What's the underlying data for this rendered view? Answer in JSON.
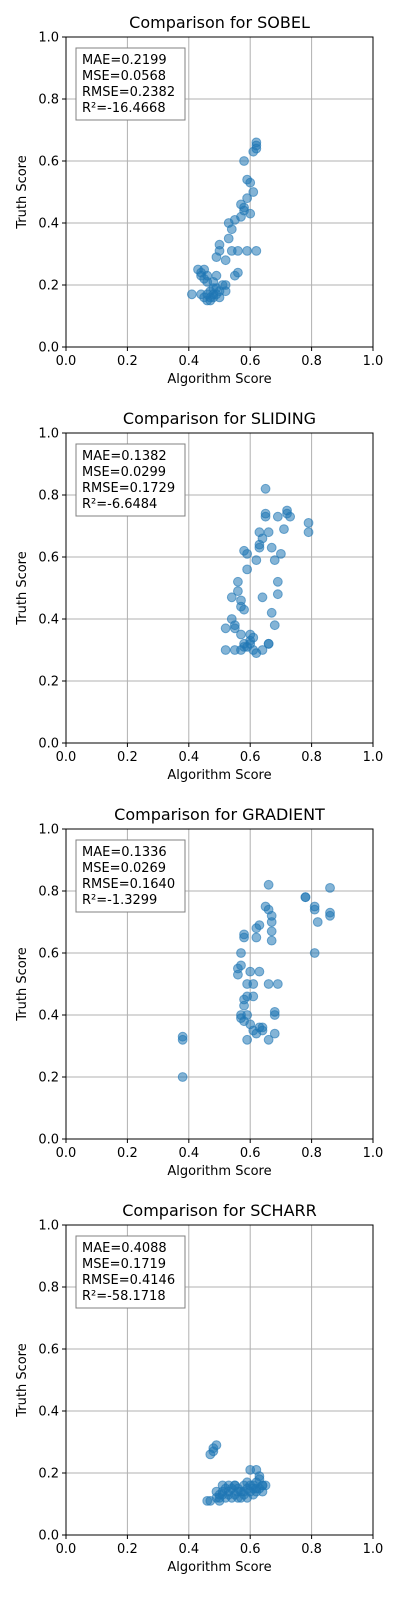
{
  "chart_data": [
    {
      "type": "scatter",
      "title": "Comparison for SOBEL",
      "xlabel": "Algorithm Score",
      "ylabel": "Truth Score",
      "xlim": [
        0,
        1
      ],
      "ylim": [
        0,
        1
      ],
      "xticks": [
        "0.0",
        "0.2",
        "0.4",
        "0.6",
        "0.8",
        "1.0"
      ],
      "yticks": [
        "0.0",
        "0.2",
        "0.4",
        "0.6",
        "0.8",
        "1.0"
      ],
      "grid": true,
      "point_color": "#1f77b4",
      "stats": [
        "MAE=0.2199",
        "MSE=0.0568",
        "RMSE=0.2382",
        "R²=-16.4668"
      ],
      "points": [
        [
          0.41,
          0.17
        ],
        [
          0.43,
          0.25
        ],
        [
          0.44,
          0.24
        ],
        [
          0.44,
          0.17
        ],
        [
          0.45,
          0.16
        ],
        [
          0.45,
          0.25
        ],
        [
          0.46,
          0.23
        ],
        [
          0.46,
          0.21
        ],
        [
          0.47,
          0.18
        ],
        [
          0.47,
          0.15
        ],
        [
          0.48,
          0.16
        ],
        [
          0.48,
          0.21
        ],
        [
          0.48,
          0.17
        ],
        [
          0.49,
          0.17
        ],
        [
          0.49,
          0.19
        ],
        [
          0.49,
          0.29
        ],
        [
          0.49,
          0.23
        ],
        [
          0.5,
          0.31
        ],
        [
          0.5,
          0.33
        ],
        [
          0.5,
          0.18
        ],
        [
          0.51,
          0.2
        ],
        [
          0.52,
          0.28
        ],
        [
          0.52,
          0.2
        ],
        [
          0.52,
          0.18
        ],
        [
          0.53,
          0.35
        ],
        [
          0.53,
          0.4
        ],
        [
          0.54,
          0.31
        ],
        [
          0.54,
          0.38
        ],
        [
          0.55,
          0.23
        ],
        [
          0.55,
          0.41
        ],
        [
          0.56,
          0.24
        ],
        [
          0.56,
          0.31
        ],
        [
          0.57,
          0.42
        ],
        [
          0.57,
          0.46
        ],
        [
          0.58,
          0.45
        ],
        [
          0.58,
          0.6
        ],
        [
          0.58,
          0.44
        ],
        [
          0.59,
          0.54
        ],
        [
          0.59,
          0.48
        ],
        [
          0.59,
          0.31
        ],
        [
          0.6,
          0.43
        ],
        [
          0.6,
          0.53
        ],
        [
          0.61,
          0.5
        ],
        [
          0.61,
          0.63
        ],
        [
          0.62,
          0.65
        ],
        [
          0.62,
          0.66
        ],
        [
          0.62,
          0.64
        ],
        [
          0.62,
          0.31
        ],
        [
          0.44,
          0.23
        ],
        [
          0.46,
          0.15
        ],
        [
          0.47,
          0.16
        ],
        [
          0.45,
          0.22
        ],
        [
          0.48,
          0.19
        ],
        [
          0.46,
          0.17
        ],
        [
          0.5,
          0.16
        ]
      ]
    },
    {
      "type": "scatter",
      "title": "Comparison for SLIDING",
      "xlabel": "Algorithm Score",
      "ylabel": "Truth Score",
      "xlim": [
        0,
        1
      ],
      "ylim": [
        0,
        1
      ],
      "xticks": [
        "0.0",
        "0.2",
        "0.4",
        "0.6",
        "0.8",
        "1.0"
      ],
      "yticks": [
        "0.0",
        "0.2",
        "0.4",
        "0.6",
        "0.8",
        "1.0"
      ],
      "grid": true,
      "point_color": "#1f77b4",
      "stats": [
        "MAE=0.1382",
        "MSE=0.0299",
        "RMSE=0.1729",
        "R²=-6.6484"
      ],
      "points": [
        [
          0.52,
          0.3
        ],
        [
          0.52,
          0.37
        ],
        [
          0.54,
          0.4
        ],
        [
          0.54,
          0.47
        ],
        [
          0.55,
          0.38
        ],
        [
          0.55,
          0.3
        ],
        [
          0.56,
          0.52
        ],
        [
          0.56,
          0.49
        ],
        [
          0.57,
          0.44
        ],
        [
          0.57,
          0.46
        ],
        [
          0.57,
          0.35
        ],
        [
          0.58,
          0.32
        ],
        [
          0.58,
          0.43
        ],
        [
          0.58,
          0.31
        ],
        [
          0.58,
          0.62
        ],
        [
          0.59,
          0.56
        ],
        [
          0.59,
          0.31
        ],
        [
          0.6,
          0.35
        ],
        [
          0.6,
          0.33
        ],
        [
          0.61,
          0.3
        ],
        [
          0.61,
          0.34
        ],
        [
          0.62,
          0.59
        ],
        [
          0.62,
          0.29
        ],
        [
          0.63,
          0.64
        ],
        [
          0.63,
          0.68
        ],
        [
          0.64,
          0.47
        ],
        [
          0.64,
          0.66
        ],
        [
          0.64,
          0.3
        ],
        [
          0.65,
          0.73
        ],
        [
          0.65,
          0.74
        ],
        [
          0.65,
          0.82
        ],
        [
          0.66,
          0.68
        ],
        [
          0.66,
          0.32
        ],
        [
          0.66,
          0.32
        ],
        [
          0.67,
          0.63
        ],
        [
          0.67,
          0.42
        ],
        [
          0.68,
          0.59
        ],
        [
          0.68,
          0.38
        ],
        [
          0.69,
          0.48
        ],
        [
          0.69,
          0.52
        ],
        [
          0.69,
          0.73
        ],
        [
          0.7,
          0.61
        ],
        [
          0.71,
          0.69
        ],
        [
          0.72,
          0.75
        ],
        [
          0.72,
          0.74
        ],
        [
          0.73,
          0.73
        ],
        [
          0.79,
          0.68
        ],
        [
          0.79,
          0.71
        ],
        [
          0.59,
          0.61
        ],
        [
          0.63,
          0.63
        ],
        [
          0.6,
          0.32
        ],
        [
          0.57,
          0.3
        ],
        [
          0.55,
          0.37
        ]
      ]
    },
    {
      "type": "scatter",
      "title": "Comparison for GRADIENT",
      "xlabel": "Algorithm Score",
      "ylabel": "Truth Score",
      "xlim": [
        0,
        1
      ],
      "ylim": [
        0,
        1
      ],
      "xticks": [
        "0.0",
        "0.2",
        "0.4",
        "0.6",
        "0.8",
        "1.0"
      ],
      "yticks": [
        "0.0",
        "0.2",
        "0.4",
        "0.6",
        "0.8",
        "1.0"
      ],
      "grid": true,
      "point_color": "#1f77b4",
      "stats": [
        "MAE=0.1336",
        "MSE=0.0269",
        "RMSE=0.1640",
        "R²=-1.3299"
      ],
      "points": [
        [
          0.38,
          0.2
        ],
        [
          0.38,
          0.32
        ],
        [
          0.38,
          0.33
        ],
        [
          0.56,
          0.53
        ],
        [
          0.56,
          0.55
        ],
        [
          0.57,
          0.56
        ],
        [
          0.57,
          0.6
        ],
        [
          0.57,
          0.4
        ],
        [
          0.57,
          0.39
        ],
        [
          0.58,
          0.66
        ],
        [
          0.58,
          0.65
        ],
        [
          0.58,
          0.43
        ],
        [
          0.58,
          0.38
        ],
        [
          0.58,
          0.45
        ],
        [
          0.59,
          0.5
        ],
        [
          0.59,
          0.46
        ],
        [
          0.59,
          0.32
        ],
        [
          0.6,
          0.37
        ],
        [
          0.6,
          0.54
        ],
        [
          0.61,
          0.35
        ],
        [
          0.61,
          0.46
        ],
        [
          0.61,
          0.5
        ],
        [
          0.62,
          0.65
        ],
        [
          0.62,
          0.68
        ],
        [
          0.62,
          0.34
        ],
        [
          0.63,
          0.54
        ],
        [
          0.63,
          0.69
        ],
        [
          0.63,
          0.36
        ],
        [
          0.64,
          0.36
        ],
        [
          0.64,
          0.35
        ],
        [
          0.65,
          0.75
        ],
        [
          0.66,
          0.82
        ],
        [
          0.66,
          0.74
        ],
        [
          0.66,
          0.5
        ],
        [
          0.66,
          0.32
        ],
        [
          0.67,
          0.64
        ],
        [
          0.67,
          0.67
        ],
        [
          0.67,
          0.7
        ],
        [
          0.67,
          0.72
        ],
        [
          0.68,
          0.4
        ],
        [
          0.68,
          0.34
        ],
        [
          0.68,
          0.41
        ],
        [
          0.69,
          0.5
        ],
        [
          0.78,
          0.78
        ],
        [
          0.78,
          0.78
        ],
        [
          0.81,
          0.74
        ],
        [
          0.81,
          0.75
        ],
        [
          0.81,
          0.6
        ],
        [
          0.82,
          0.7
        ],
        [
          0.86,
          0.81
        ],
        [
          0.86,
          0.72
        ],
        [
          0.86,
          0.73
        ],
        [
          0.59,
          0.4
        ]
      ]
    },
    {
      "type": "scatter",
      "title": "Comparison for SCHARR",
      "xlabel": "Algorithm Score",
      "ylabel": "Truth Score",
      "xlim": [
        0,
        1
      ],
      "ylim": [
        0,
        1
      ],
      "xticks": [
        "0.0",
        "0.2",
        "0.4",
        "0.6",
        "0.8",
        "1.0"
      ],
      "yticks": [
        "0.0",
        "0.2",
        "0.4",
        "0.6",
        "0.8",
        "1.0"
      ],
      "grid": true,
      "point_color": "#1f77b4",
      "stats": [
        "MAE=0.4088",
        "MSE=0.1719",
        "RMSE=0.4146",
        "R²=-58.1718"
      ],
      "points": [
        [
          0.46,
          0.11
        ],
        [
          0.47,
          0.26
        ],
        [
          0.47,
          0.11
        ],
        [
          0.48,
          0.28
        ],
        [
          0.48,
          0.27
        ],
        [
          0.49,
          0.29
        ],
        [
          0.49,
          0.12
        ],
        [
          0.49,
          0.14
        ],
        [
          0.5,
          0.13
        ],
        [
          0.5,
          0.11
        ],
        [
          0.51,
          0.14
        ],
        [
          0.51,
          0.16
        ],
        [
          0.52,
          0.15
        ],
        [
          0.52,
          0.12
        ],
        [
          0.53,
          0.14
        ],
        [
          0.53,
          0.16
        ],
        [
          0.54,
          0.12
        ],
        [
          0.54,
          0.15
        ],
        [
          0.55,
          0.16
        ],
        [
          0.55,
          0.13
        ],
        [
          0.56,
          0.12
        ],
        [
          0.56,
          0.15
        ],
        [
          0.57,
          0.14
        ],
        [
          0.57,
          0.12
        ],
        [
          0.58,
          0.13
        ],
        [
          0.58,
          0.16
        ],
        [
          0.59,
          0.17
        ],
        [
          0.59,
          0.12
        ],
        [
          0.6,
          0.21
        ],
        [
          0.6,
          0.14
        ],
        [
          0.61,
          0.13
        ],
        [
          0.61,
          0.16
        ],
        [
          0.62,
          0.21
        ],
        [
          0.62,
          0.15
        ],
        [
          0.62,
          0.17
        ],
        [
          0.63,
          0.15
        ],
        [
          0.63,
          0.19
        ],
        [
          0.63,
          0.18
        ],
        [
          0.64,
          0.16
        ],
        [
          0.64,
          0.16
        ],
        [
          0.65,
          0.16
        ],
        [
          0.62,
          0.14
        ],
        [
          0.6,
          0.16
        ],
        [
          0.58,
          0.14
        ],
        [
          0.56,
          0.14
        ],
        [
          0.53,
          0.13
        ],
        [
          0.51,
          0.13
        ],
        [
          0.5,
          0.12
        ],
        [
          0.55,
          0.16
        ],
        [
          0.61,
          0.15
        ],
        [
          0.64,
          0.14
        ],
        [
          0.59,
          0.15
        ]
      ]
    }
  ]
}
